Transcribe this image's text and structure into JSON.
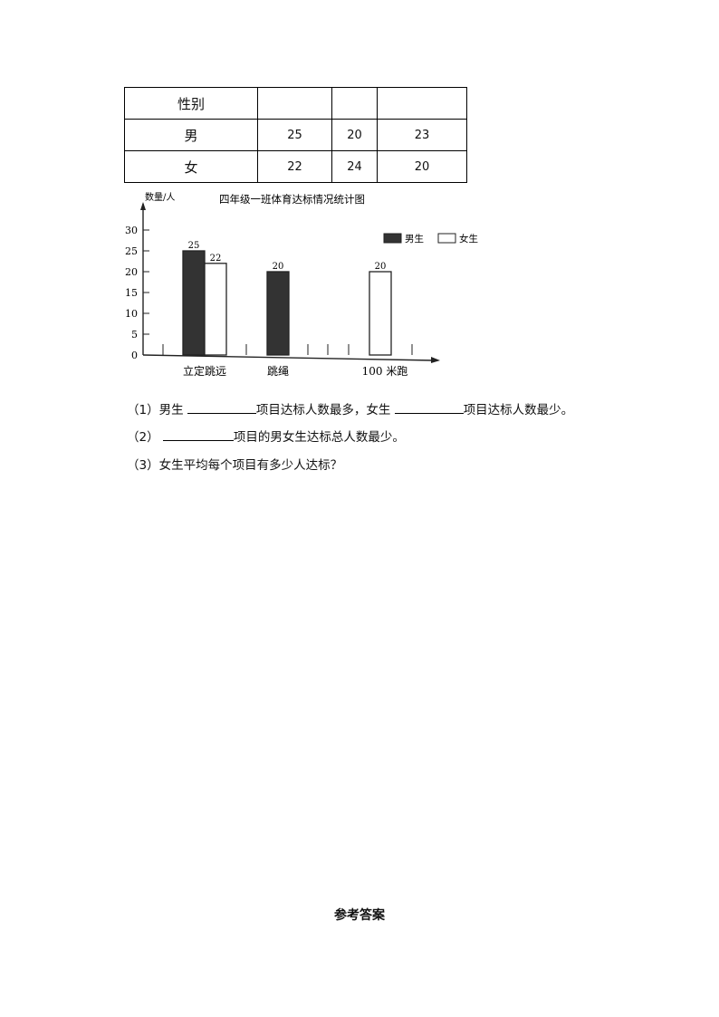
{
  "table": {
    "header": [
      "性别",
      "",
      "",
      ""
    ],
    "rows": [
      [
        "男",
        "25",
        "20",
        "23"
      ],
      [
        "女",
        "22",
        "24",
        "20"
      ]
    ]
  },
  "chart_data": {
    "type": "bar",
    "title": "四年级一班体育达标情况统计图",
    "ylabel": "数量/人",
    "xlabel": "",
    "ylim": [
      0,
      30
    ],
    "yticks": [
      0,
      5,
      10,
      15,
      20,
      25,
      30
    ],
    "categories": [
      "立定跳远",
      "跳绳",
      "100 米跑"
    ],
    "series": [
      {
        "name": "男生",
        "values": [
          25,
          20,
          null
        ],
        "color": "#333333"
      },
      {
        "name": "女生",
        "values": [
          22,
          null,
          20
        ],
        "color": "#ffffff"
      }
    ],
    "legend": "top-right"
  },
  "questions": {
    "q1_a": "（1）男生 ",
    "q1_b": "项目达标人数最多，女生 ",
    "q1_c": "项目达标人数最少。",
    "q2_a": "（2） ",
    "q2_b": "项目的男女生达标总人数最少。",
    "q3": "（3）女生平均每个项目有多少人达标？"
  },
  "answer_heading": "参考答案"
}
